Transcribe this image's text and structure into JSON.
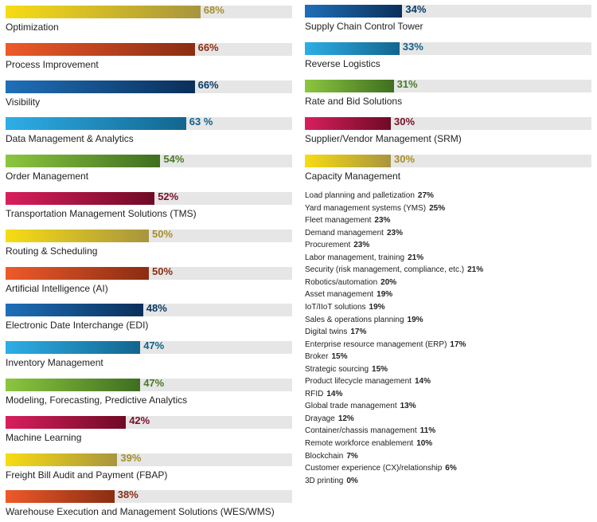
{
  "chart_data": [
    {
      "type": "bar",
      "orientation": "horizontal",
      "xlim": [
        0,
        100
      ],
      "categories": [
        "Optimization",
        "Process Improvement",
        "Visibility",
        "Data Management & Analytics",
        "Order Management",
        "Transportation Management Solutions (TMS)",
        "Routing & Scheduling",
        "Artificial Intelligence (AI)",
        "Electronic Date Interchange (EDI)",
        "Inventory Management",
        "Modeling, Forecasting, Predictive Analytics",
        "Machine Learning",
        "Freight Bill Audit and Payment (FBAP)",
        "Warehouse Execution and Management Solutions (WES/WMS)"
      ],
      "values": [
        68,
        66,
        66,
        63,
        54,
        52,
        50,
        50,
        48,
        47,
        47,
        42,
        39,
        38
      ],
      "value_labels": [
        "68%",
        "66%",
        "66%",
        "63 %",
        "54%",
        "52%",
        "50%",
        "50%",
        "48%",
        "47%",
        "47%",
        "42%",
        "39%",
        "38%"
      ],
      "colors": [
        "yellow",
        "orange",
        "blue",
        "lightblue",
        "green",
        "crimson",
        "yellow",
        "orange",
        "blue",
        "lightblue",
        "green",
        "crimson",
        "yellow",
        "orange"
      ]
    },
    {
      "type": "bar",
      "orientation": "horizontal",
      "xlim": [
        0,
        100
      ],
      "categories": [
        "Supply Chain Control Tower",
        "Reverse Logistics",
        "Rate and Bid Solutions",
        "Supplier/Vendor Management (SRM)",
        "Capacity Management"
      ],
      "values": [
        34,
        33,
        31,
        30,
        30
      ],
      "value_labels": [
        "34%",
        "33%",
        "31%",
        "30%",
        "30%"
      ],
      "colors": [
        "blue",
        "lightblue",
        "green",
        "crimson",
        "yellow"
      ]
    },
    {
      "type": "table",
      "rows": [
        {
          "label": "Load planning and palletization",
          "value": "27%"
        },
        {
          "label": "Yard management systems (YMS)",
          "value": "25%"
        },
        {
          "label": "Fleet management",
          "value": "23%"
        },
        {
          "label": "Demand management",
          "value": "23%"
        },
        {
          "label": "Procurement",
          "value": "23%"
        },
        {
          "label": "Labor management, training",
          "value": "21%"
        },
        {
          "label": "Security (risk management, compliance, etc.)",
          "value": "21%"
        },
        {
          "label": "Robotics/automation",
          "value": "20%"
        },
        {
          "label": "Asset management",
          "value": "19%"
        },
        {
          "label": "IoT/IIoT solutions",
          "value": "19%"
        },
        {
          "label": "Sales & operations planning",
          "value": "19%"
        },
        {
          "label": "Digital twins",
          "value": "17%"
        },
        {
          "label": "Enterprise resource management (ERP)",
          "value": "17%"
        },
        {
          "label": "Broker",
          "value": "15%"
        },
        {
          "label": "Strategic sourcing",
          "value": "15%"
        },
        {
          "label": "Product lifecycle management",
          "value": "14%"
        },
        {
          "label": "RFID",
          "value": "14%"
        },
        {
          "label": "Global trade management",
          "value": "13%"
        },
        {
          "label": "Drayage",
          "value": "12%"
        },
        {
          "label": "Container/chassis management",
          "value": "11%"
        },
        {
          "label": "Remote workforce enablement",
          "value": "10%"
        },
        {
          "label": "Blockchain",
          "value": "7%"
        },
        {
          "label": "Customer experience (CX)/relationship",
          "value": "6%"
        },
        {
          "label": "3D printing",
          "value": "0%"
        }
      ]
    }
  ],
  "palette": {
    "yellow": {
      "from": "#f7dc14",
      "to": "#a8953e",
      "text": "#a58f2a"
    },
    "orange": {
      "from": "#ee5a2a",
      "to": "#8a2d12",
      "text": "#8a2d12"
    },
    "blue": {
      "from": "#1f6fb8",
      "to": "#0a2f5a",
      "text": "#0a3a66"
    },
    "lightblue": {
      "from": "#2eaee6",
      "to": "#12668f",
      "text": "#12608a"
    },
    "green": {
      "from": "#8cc63f",
      "to": "#3f6e21",
      "text": "#4a7a25"
    },
    "crimson": {
      "from": "#d81f5e",
      "to": "#6f0a25",
      "text": "#7a0f2a"
    }
  }
}
